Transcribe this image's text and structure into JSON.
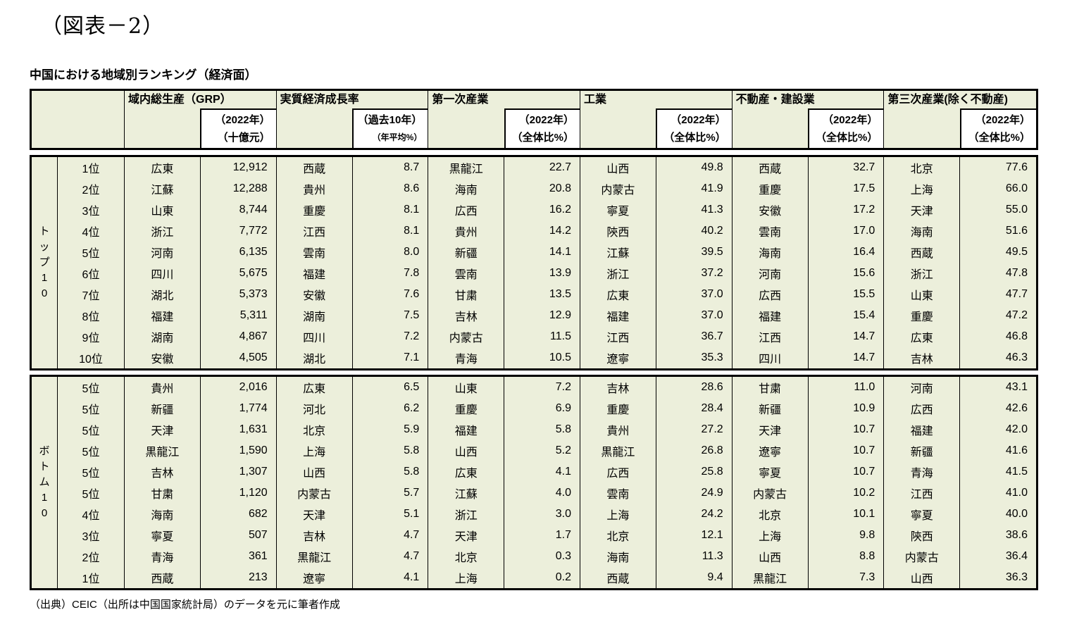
{
  "figure_label": "（図表－2）",
  "table_title": "中国における地域別ランキング（経済面）",
  "source_note": "（出典）CEIC（出所は中国国家統計局）のデータを元に筆者作成",
  "colors": {
    "cell_background": "#ECEFDB",
    "subheader_background": "#FFFFFF",
    "border": "#000000",
    "text": "#000000"
  },
  "header": {
    "sections": [
      {
        "title": "域内総生産（GRP）",
        "sub_line1": "（2022年）",
        "sub_line2": "（十億元）",
        "sub2_small": false
      },
      {
        "title": "実質経済成長率",
        "sub_line1": "（過去10年）",
        "sub_line2": "（年平均%）",
        "sub2_small": true
      },
      {
        "title": "第一次産業",
        "sub_line1": "（2022年）",
        "sub_line2": "（全体比%）",
        "sub2_small": false
      },
      {
        "title": "工業",
        "sub_line1": "（2022年）",
        "sub_line2": "（全体比%）",
        "sub2_small": false
      },
      {
        "title": "不動産・建設業",
        "sub_line1": "（2022年）",
        "sub_line2": "（全体比%）",
        "sub2_small": false
      },
      {
        "title": "第三次産業(除く不動産)",
        "sub_line1": "（2022年）",
        "sub_line2": "（全体比%）",
        "sub2_small": false
      }
    ]
  },
  "blocks": [
    {
      "id": "top10",
      "group_label": "トップ10",
      "group_label_chars": [
        "ト",
        "ッ",
        "プ",
        "1",
        "0"
      ],
      "rows": [
        {
          "rank": "1位",
          "cells": [
            "広東",
            "12,912",
            "西蔵",
            "8.7",
            "黒龍江",
            "22.7",
            "山西",
            "49.8",
            "西蔵",
            "32.7",
            "北京",
            "77.6"
          ]
        },
        {
          "rank": "2位",
          "cells": [
            "江蘇",
            "12,288",
            "貴州",
            "8.6",
            "海南",
            "20.8",
            "内蒙古",
            "41.9",
            "重慶",
            "17.5",
            "上海",
            "66.0"
          ]
        },
        {
          "rank": "3位",
          "cells": [
            "山東",
            "8,744",
            "重慶",
            "8.1",
            "広西",
            "16.2",
            "寧夏",
            "41.3",
            "安徽",
            "17.2",
            "天津",
            "55.0"
          ]
        },
        {
          "rank": "4位",
          "cells": [
            "浙江",
            "7,772",
            "江西",
            "8.1",
            "貴州",
            "14.2",
            "陝西",
            "40.2",
            "雲南",
            "17.0",
            "海南",
            "51.6"
          ]
        },
        {
          "rank": "5位",
          "cells": [
            "河南",
            "6,135",
            "雲南",
            "8.0",
            "新疆",
            "14.1",
            "江蘇",
            "39.5",
            "海南",
            "16.4",
            "西蔵",
            "49.5"
          ]
        },
        {
          "rank": "6位",
          "cells": [
            "四川",
            "5,675",
            "福建",
            "7.8",
            "雲南",
            "13.9",
            "浙江",
            "37.2",
            "河南",
            "15.6",
            "浙江",
            "47.8"
          ]
        },
        {
          "rank": "7位",
          "cells": [
            "湖北",
            "5,373",
            "安徽",
            "7.6",
            "甘粛",
            "13.5",
            "広東",
            "37.0",
            "広西",
            "15.5",
            "山東",
            "47.7"
          ]
        },
        {
          "rank": "8位",
          "cells": [
            "福建",
            "5,311",
            "湖南",
            "7.5",
            "吉林",
            "12.9",
            "福建",
            "37.0",
            "福建",
            "15.4",
            "重慶",
            "47.2"
          ]
        },
        {
          "rank": "9位",
          "cells": [
            "湖南",
            "4,867",
            "四川",
            "7.2",
            "内蒙古",
            "11.5",
            "江西",
            "36.7",
            "江西",
            "14.7",
            "広東",
            "46.8"
          ]
        },
        {
          "rank": "10位",
          "cells": [
            "安徽",
            "4,505",
            "湖北",
            "7.1",
            "青海",
            "10.5",
            "遼寧",
            "35.3",
            "四川",
            "14.7",
            "吉林",
            "46.3"
          ]
        }
      ]
    },
    {
      "id": "bottom10",
      "group_label": "ボトム10",
      "group_label_chars": [
        "ボ",
        "ト",
        "ム",
        "1",
        "0"
      ],
      "rows": [
        {
          "rank": "5位",
          "cells": [
            "貴州",
            "2,016",
            "広東",
            "6.5",
            "山東",
            "7.2",
            "吉林",
            "28.6",
            "甘粛",
            "11.0",
            "河南",
            "43.1"
          ]
        },
        {
          "rank": "5位",
          "cells": [
            "新疆",
            "1,774",
            "河北",
            "6.2",
            "重慶",
            "6.9",
            "重慶",
            "28.4",
            "新疆",
            "10.9",
            "広西",
            "42.6"
          ]
        },
        {
          "rank": "5位",
          "cells": [
            "天津",
            "1,631",
            "北京",
            "5.9",
            "福建",
            "5.8",
            "貴州",
            "27.2",
            "天津",
            "10.7",
            "福建",
            "42.0"
          ]
        },
        {
          "rank": "5位",
          "cells": [
            "黒龍江",
            "1,590",
            "上海",
            "5.8",
            "山西",
            "5.2",
            "黒龍江",
            "26.8",
            "遼寧",
            "10.7",
            "新疆",
            "41.6"
          ]
        },
        {
          "rank": "5位",
          "cells": [
            "吉林",
            "1,307",
            "山西",
            "5.8",
            "広東",
            "4.1",
            "広西",
            "25.8",
            "寧夏",
            "10.7",
            "青海",
            "41.5"
          ]
        },
        {
          "rank": "5位",
          "cells": [
            "甘粛",
            "1,120",
            "内蒙古",
            "5.7",
            "江蘇",
            "4.0",
            "雲南",
            "24.9",
            "内蒙古",
            "10.2",
            "江西",
            "41.0"
          ]
        },
        {
          "rank": "4位",
          "cells": [
            "海南",
            "682",
            "天津",
            "5.1",
            "浙江",
            "3.0",
            "上海",
            "24.2",
            "北京",
            "10.1",
            "寧夏",
            "40.0"
          ]
        },
        {
          "rank": "3位",
          "cells": [
            "寧夏",
            "507",
            "吉林",
            "4.7",
            "天津",
            "1.7",
            "北京",
            "12.1",
            "上海",
            "9.8",
            "陝西",
            "38.6"
          ]
        },
        {
          "rank": "2位",
          "cells": [
            "青海",
            "361",
            "黒龍江",
            "4.7",
            "北京",
            "0.3",
            "海南",
            "11.3",
            "山西",
            "8.8",
            "内蒙古",
            "36.4"
          ]
        },
        {
          "rank": "1位",
          "cells": [
            "西蔵",
            "213",
            "遼寧",
            "4.1",
            "上海",
            "0.2",
            "西蔵",
            "9.4",
            "黒龍江",
            "7.3",
            "山西",
            "36.3"
          ]
        }
      ]
    }
  ]
}
